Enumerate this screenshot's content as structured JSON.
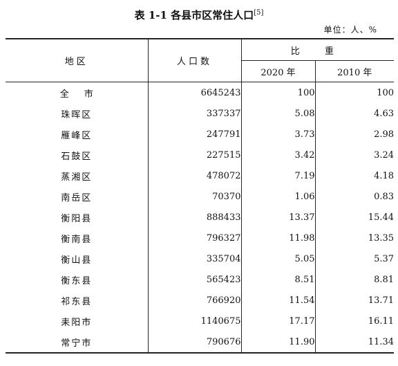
{
  "title": "表 1-1 各县市区常住人口",
  "title_note": "[5]",
  "unit": "单位：人、%",
  "headers": {
    "region": "地区",
    "population": "人口数",
    "ratio": "比 重",
    "year_2020": "2020 年",
    "year_2010": "2010 年"
  },
  "rows": [
    {
      "region": "全市",
      "population": "6645243",
      "r2020": "100",
      "r2010": "100"
    },
    {
      "region": "珠晖区",
      "population": "337337",
      "r2020": "5.08",
      "r2010": "4.63"
    },
    {
      "region": "雁峰区",
      "population": "247791",
      "r2020": "3.73",
      "r2010": "2.98"
    },
    {
      "region": "石鼓区",
      "population": "227515",
      "r2020": "3.42",
      "r2010": "3.24"
    },
    {
      "region": "蒸湘区",
      "population": "478072",
      "r2020": "7.19",
      "r2010": "4.18"
    },
    {
      "region": "南岳区",
      "population": "70370",
      "r2020": "1.06",
      "r2010": "0.83"
    },
    {
      "region": "衡阳县",
      "population": "888433",
      "r2020": "13.37",
      "r2010": "15.44"
    },
    {
      "region": "衡南县",
      "population": "796327",
      "r2020": "11.98",
      "r2010": "13.35"
    },
    {
      "region": "衡山县",
      "population": "335704",
      "r2020": "5.05",
      "r2010": "5.37"
    },
    {
      "region": "衡东县",
      "population": "565423",
      "r2020": "8.51",
      "r2010": "8.81"
    },
    {
      "region": "祁东县",
      "population": "766920",
      "r2020": "11.54",
      "r2010": "13.71"
    },
    {
      "region": "耒阳市",
      "population": "1140675",
      "r2020": "17.17",
      "r2010": "16.11"
    },
    {
      "region": "常宁市",
      "population": "790676",
      "r2020": "11.90",
      "r2010": "11.34"
    }
  ]
}
